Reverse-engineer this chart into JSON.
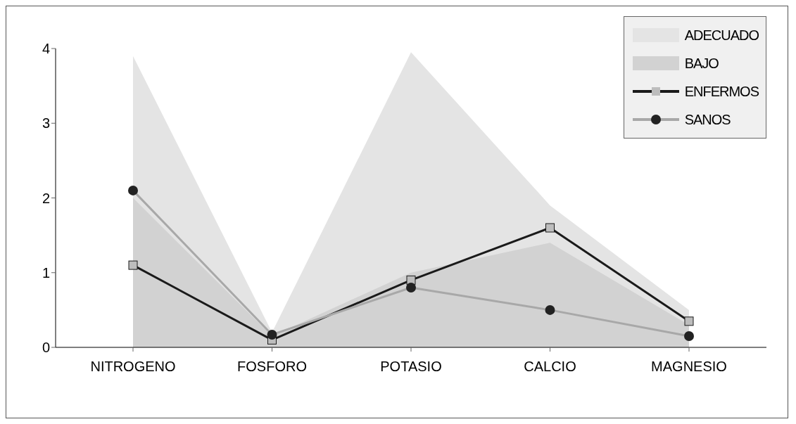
{
  "chart_data": {
    "type": "line",
    "categories": [
      "NITROGENO",
      "FOSFORO",
      "POTASIO",
      "CALCIO",
      "MAGNESIO"
    ],
    "series": [
      {
        "name": "ADECUADO",
        "type": "area",
        "color": "#e4e4e4",
        "values": [
          3.9,
          0.2,
          3.95,
          1.9,
          0.5
        ]
      },
      {
        "name": "BAJO",
        "type": "area",
        "color": "#d2d2d2",
        "values": [
          2.0,
          0.15,
          1.0,
          1.4,
          0.3
        ]
      },
      {
        "name": "ENFERMOS",
        "color": "#1a1a1a",
        "marker": "square",
        "values": [
          1.1,
          0.1,
          0.9,
          1.6,
          0.35
        ]
      },
      {
        "name": "SANOS",
        "color": "#a8a8a8",
        "marker": "circle",
        "values": [
          2.1,
          0.17,
          0.8,
          0.5,
          0.15
        ]
      }
    ],
    "ylim": [
      0,
      4
    ],
    "yticks": [
      0,
      1,
      2,
      3,
      4
    ],
    "legend": "top right"
  }
}
